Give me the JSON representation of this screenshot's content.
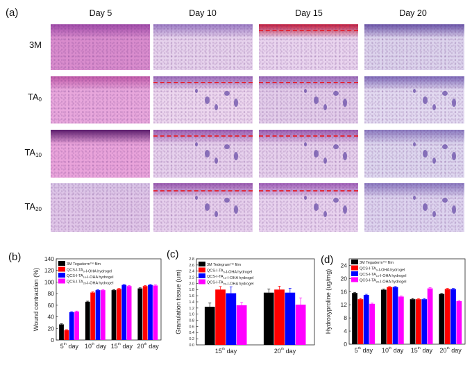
{
  "figure": {
    "panel_a": {
      "label": "(a)",
      "columns": [
        "Day 5",
        "Day 10",
        "Day 15",
        "Day 20"
      ],
      "rows": [
        {
          "label": "3M",
          "sub": ""
        },
        {
          "label": "TA",
          "sub": "0"
        },
        {
          "label": "TA",
          "sub": "10"
        },
        {
          "label": "TA",
          "sub": "20"
        }
      ],
      "annotations": {
        "red_dashed_line": "new epidermis boundary",
        "red_star": "marker",
        "blue_arrow": "marker",
        "green_arrow": "marker"
      }
    },
    "panel_b_label": "(b)",
    "panel_c_label": "(c)",
    "panel_d_label": "(d)",
    "legend": [
      {
        "name": "3M Tegaderm™ film",
        "color": "#000000"
      },
      {
        "name": "QCS-I-TA₀-I-OHA hydrogel",
        "color": "#ff0000"
      },
      {
        "name": "QCS-I-TA₁₀-I-OHA hydrogel",
        "color": "#0000ff"
      },
      {
        "name": "QCS-I-TA₂₀-I-OHA hydrogel",
        "color": "#ff00ff"
      }
    ],
    "legend_c_first": "3M Tedegram™ film"
  },
  "chart_data": [
    {
      "id": "b",
      "type": "bar",
      "title": "",
      "xlabel": "",
      "ylabel": "Wound contraction (%)",
      "categories": [
        "5th day",
        "10th day",
        "15th day",
        "20th day"
      ],
      "ylim": [
        0,
        140
      ],
      "yticks": [
        0,
        20,
        40,
        60,
        80,
        100,
        120,
        140
      ],
      "legend_position": "upper left",
      "series": [
        {
          "name": "3M Tegaderm™ film",
          "color": "#000000",
          "values": [
            27,
            66,
            86,
            89
          ]
        },
        {
          "name": "QCS-I-TA0-I-OHA hydrogel",
          "color": "#ff0000",
          "values": [
            17,
            82,
            88,
            93
          ]
        },
        {
          "name": "QCS-I-TA10-I-OHA hydrogel",
          "color": "#0000ff",
          "values": [
            48,
            86,
            95,
            95
          ]
        },
        {
          "name": "QCS-I-TA20-I-OHA hydrogel",
          "color": "#ff00ff",
          "values": [
            49,
            86,
            93,
            94
          ]
        }
      ],
      "errors": [
        [
          1,
          1,
          1,
          1
        ],
        [
          1,
          1,
          1,
          1
        ],
        [
          1,
          1,
          1,
          1
        ],
        [
          1,
          1,
          1,
          1
        ]
      ]
    },
    {
      "id": "c",
      "type": "bar",
      "title": "",
      "xlabel": "",
      "ylabel": "Granulation tissue (um)",
      "categories": [
        "15th day",
        "20th day"
      ],
      "ylim": [
        0,
        2.8
      ],
      "yticks": [
        0.0,
        0.2,
        0.4,
        0.6,
        0.8,
        1.0,
        1.2,
        1.4,
        1.6,
        1.8,
        2.0,
        2.2,
        2.4,
        2.6,
        2.8
      ],
      "legend_position": "upper left",
      "series": [
        {
          "name": "3M Tedegram™ film",
          "color": "#000000",
          "values": [
            1.24,
            1.7
          ]
        },
        {
          "name": "QCS-I-TA0-I-OHA hydrogel",
          "color": "#ff0000",
          "values": [
            1.8,
            1.8
          ]
        },
        {
          "name": "QCS-I-TA10-I-OHA hydrogel",
          "color": "#0000ff",
          "values": [
            1.68,
            1.7
          ]
        },
        {
          "name": "QCS-I-TA20-I-OHA hydrogel",
          "color": "#ff00ff",
          "values": [
            1.29,
            1.31
          ]
        }
      ],
      "errors": [
        [
          0.12,
          0.12
        ],
        [
          0.1,
          0.11
        ],
        [
          0.21,
          0.14
        ],
        [
          0.09,
          0.22
        ]
      ]
    },
    {
      "id": "d",
      "type": "bar",
      "title": "",
      "xlabel": "",
      "ylabel": "Hydroxyproline (ug/mg)",
      "categories": [
        "5th day",
        "10th day",
        "15th day",
        "20th day"
      ],
      "ylim": [
        0,
        26
      ],
      "yticks": [
        0,
        4,
        8,
        12,
        16,
        20,
        24
      ],
      "legend_position": "upper left",
      "series": [
        {
          "name": "3M Tegaderm™ film",
          "color": "#000000",
          "values": [
            15.6,
            16.6,
            13.7,
            15.3
          ]
        },
        {
          "name": "QCS-I-TA0-I-OHA hydrogel",
          "color": "#ff0000",
          "values": [
            13.7,
            17.4,
            13.7,
            16.8
          ]
        },
        {
          "name": "QCS-I-TA10-I-OHA hydrogel",
          "color": "#0000ff",
          "values": [
            15.0,
            17.4,
            13.7,
            16.8
          ]
        },
        {
          "name": "QCS-I-TA20-I-OHA hydrogel",
          "color": "#ff00ff",
          "values": [
            12.3,
            14.5,
            17.0,
            13.1
          ]
        }
      ],
      "errors": [
        [
          0.2,
          0.2,
          0.2,
          0.2
        ],
        [
          0.2,
          0.2,
          0.2,
          0.2
        ],
        [
          0.2,
          0.2,
          0.2,
          0.2
        ],
        [
          0.2,
          0.2,
          0.2,
          0.2
        ]
      ]
    }
  ]
}
